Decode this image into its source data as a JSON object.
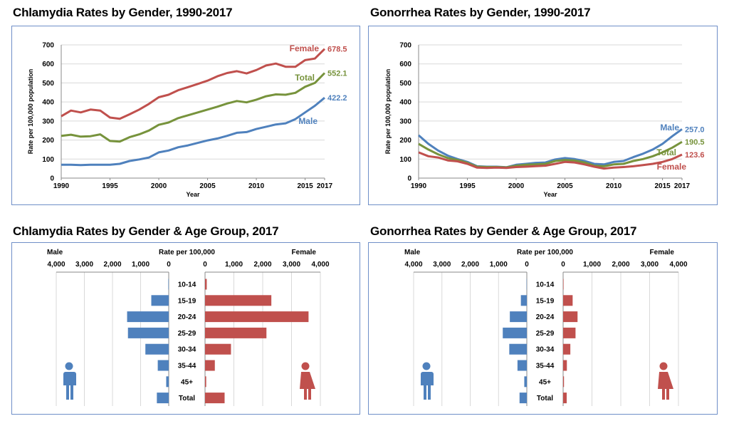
{
  "titles": {
    "chl_trend": "Chlamydia Rates by Gender, 1990-2017",
    "gon_trend": "Gonorrhea Rates by Gender, 1990-2017",
    "chl_age": "Chlamydia Rates by Gender & Age Group, 2017",
    "gon_age": "Gonorrhea Rates by Gender & Age Group, 2017"
  },
  "colors": {
    "male": "#4f81bd",
    "female": "#c0504d",
    "total": "#77933c",
    "border": "#6f8fc8",
    "grid": "#d9d9d9"
  },
  "icons": {
    "male": "male-figure-icon",
    "female": "female-figure-icon"
  },
  "chart_data": [
    {
      "type": "line",
      "title": "Chlamydia Rates by Gender, 1990-2017",
      "xlabel": "Year",
      "ylabel": "Rate per 100,000 population",
      "ylim": [
        0,
        700
      ],
      "yticks": [
        "0",
        "100",
        "200",
        "300",
        "400",
        "500",
        "600",
        "700"
      ],
      "xticks": [
        "1990",
        "1995",
        "2000",
        "2005",
        "2010",
        "2015",
        "2017"
      ],
      "x": [
        1990,
        1991,
        1992,
        1993,
        1994,
        1995,
        1996,
        1997,
        1998,
        1999,
        2000,
        2001,
        2002,
        2003,
        2004,
        2005,
        2006,
        2007,
        2008,
        2009,
        2010,
        2011,
        2012,
        2013,
        2014,
        2015,
        2016,
        2017
      ],
      "series": [
        {
          "name": "Female",
          "end_label": "678.5",
          "values": [
            325,
            355,
            345,
            360,
            355,
            318,
            312,
            335,
            360,
            390,
            425,
            438,
            462,
            478,
            495,
            512,
            535,
            552,
            562,
            550,
            568,
            592,
            602,
            585,
            585,
            620,
            628,
            678.5
          ]
        },
        {
          "name": "Total",
          "end_label": "552.1",
          "values": [
            222,
            228,
            218,
            220,
            230,
            195,
            192,
            215,
            230,
            250,
            280,
            292,
            315,
            330,
            345,
            360,
            375,
            392,
            405,
            398,
            412,
            430,
            440,
            438,
            448,
            480,
            500,
            552.1
          ]
        },
        {
          "name": "Male",
          "end_label": "422.2",
          "values": [
            70,
            70,
            68,
            70,
            70,
            70,
            75,
            90,
            98,
            108,
            135,
            145,
            162,
            172,
            185,
            198,
            208,
            222,
            238,
            242,
            258,
            270,
            282,
            288,
            310,
            345,
            380,
            422.2
          ]
        }
      ],
      "grid": true
    },
    {
      "type": "line",
      "title": "Gonorrhea Rates by Gender, 1990-2017",
      "xlabel": "Year",
      "ylabel": "Rate per 100,000 population",
      "ylim": [
        0,
        700
      ],
      "yticks": [
        "0",
        "100",
        "200",
        "300",
        "400",
        "500",
        "600",
        "700"
      ],
      "xticks": [
        "1990",
        "1995",
        "2000",
        "2005",
        "2010",
        "2015",
        "2017"
      ],
      "x": [
        1990,
        1991,
        1992,
        1993,
        1994,
        1995,
        1996,
        1997,
        1998,
        1999,
        2000,
        2001,
        2002,
        2003,
        2004,
        2005,
        2006,
        2007,
        2008,
        2009,
        2010,
        2011,
        2012,
        2013,
        2014,
        2015,
        2016,
        2017
      ],
      "series": [
        {
          "name": "Male",
          "end_label": "257.0",
          "values": [
            225,
            180,
            145,
            118,
            100,
            85,
            62,
            60,
            60,
            57,
            70,
            75,
            80,
            82,
            98,
            105,
            100,
            90,
            75,
            72,
            85,
            90,
            110,
            128,
            150,
            180,
            220,
            257.0
          ]
        },
        {
          "name": "Total",
          "end_label": "190.5",
          "values": [
            180,
            150,
            125,
            105,
            95,
            80,
            60,
            58,
            58,
            56,
            65,
            70,
            72,
            75,
            90,
            95,
            92,
            82,
            65,
            62,
            72,
            75,
            90,
            100,
            115,
            135,
            160,
            190.5
          ]
        },
        {
          "name": "Female",
          "end_label": "123.6",
          "values": [
            135,
            115,
            108,
            93,
            88,
            75,
            55,
            53,
            55,
            53,
            58,
            60,
            63,
            65,
            75,
            85,
            82,
            72,
            60,
            50,
            55,
            58,
            62,
            68,
            75,
            85,
            100,
            123.6
          ]
        }
      ],
      "grid": true
    },
    {
      "type": "bar",
      "orientation": "horizontal-back-to-back",
      "title": "Chlamydia Rates by Gender & Age Group, 2017",
      "header": "Rate per 100,000",
      "left_label": "Male",
      "right_label": "Female",
      "xlim": [
        0,
        4000
      ],
      "left_ticks": [
        "4,000",
        "3,000",
        "2,000",
        "1,000",
        "0"
      ],
      "right_ticks": [
        "0",
        "1,000",
        "2,000",
        "3,000",
        "4,000"
      ],
      "categories": [
        "10-14",
        "15-19",
        "20-24",
        "25-29",
        "30-34",
        "35-44",
        "45+",
        "Total"
      ],
      "series": [
        {
          "name": "Male",
          "values": [
            15,
            620,
            1480,
            1450,
            830,
            390,
            90,
            422
          ]
        },
        {
          "name": "Female",
          "values": [
            60,
            2300,
            3590,
            2130,
            900,
            340,
            40,
            679
          ]
        }
      ],
      "grid": true
    },
    {
      "type": "bar",
      "orientation": "horizontal-back-to-back",
      "title": "Gonorrhea Rates by Gender & Age Group, 2017",
      "header": "Rate per 100,000",
      "left_label": "Male",
      "right_label": "Female",
      "xlim": [
        0,
        4000
      ],
      "left_ticks": [
        "4,000",
        "3,000",
        "2,000",
        "1,000",
        "0"
      ],
      "right_ticks": [
        "0",
        "1,000",
        "2,000",
        "3,000",
        "4,000"
      ],
      "categories": [
        "10-14",
        "15-19",
        "20-24",
        "25-29",
        "30-34",
        "35-44",
        "45+",
        "Total"
      ],
      "series": [
        {
          "name": "Male",
          "values": [
            10,
            210,
            600,
            850,
            620,
            330,
            90,
            257
          ]
        },
        {
          "name": "Female",
          "values": [
            15,
            330,
            500,
            430,
            250,
            130,
            30,
            124
          ]
        }
      ],
      "grid": true
    }
  ]
}
